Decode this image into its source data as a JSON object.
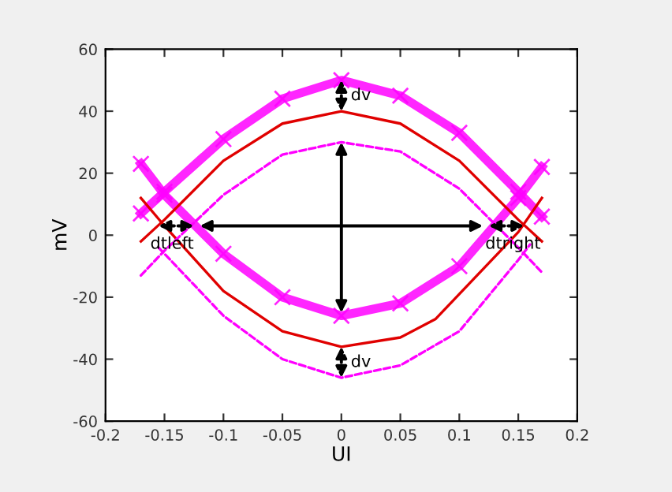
{
  "chart_data": {
    "type": "line",
    "xlabel": "UI",
    "ylabel": "mV",
    "xlim": [
      -0.2,
      0.2
    ],
    "ylim": [
      -60,
      60
    ],
    "xticks": [
      -0.2,
      -0.15,
      -0.1,
      -0.05,
      0,
      0.05,
      0.1,
      0.15,
      0.2
    ],
    "yticks": [
      -60,
      -40,
      -20,
      0,
      20,
      40,
      60
    ],
    "grid": false,
    "series": [
      {
        "color": "#ff00ff",
        "marker": "cross",
        "line_style": "solid",
        "x": [
          -0.17,
          -0.15,
          -0.1,
          -0.05,
          0,
          0.05,
          0.1,
          0.15,
          0.17
        ],
        "values": [
          7,
          14,
          31,
          44,
          50,
          45,
          33,
          14,
          6
        ]
      },
      {
        "color": "#ff00ff",
        "marker": "cross",
        "line_style": "solid",
        "x": [
          -0.17,
          -0.15,
          -0.1,
          -0.05,
          0,
          0.05,
          0.1,
          0.15,
          0.17
        ],
        "values": [
          23,
          13,
          -6,
          -20,
          -26,
          -22,
          -10,
          12,
          22
        ]
      },
      {
        "color": "#e00000",
        "marker": "none",
        "line_style": "solid",
        "x": [
          -0.17,
          -0.15,
          -0.1,
          -0.05,
          0,
          0.05,
          0.1,
          0.15,
          0.17
        ],
        "values": [
          -2,
          5,
          24,
          36,
          40,
          36,
          24,
          5,
          -2
        ]
      },
      {
        "color": "#e00000",
        "marker": "none",
        "line_style": "solid",
        "x": [
          -0.17,
          -0.15,
          -0.1,
          -0.05,
          0,
          0.05,
          0.08,
          0.15,
          0.17
        ],
        "values": [
          12,
          3,
          -18,
          -31,
          -36,
          -33,
          -27,
          1,
          12
        ]
      },
      {
        "color": "#ff00ff",
        "marker": "none",
        "line_style": "dashed",
        "x": [
          -0.17,
          -0.15,
          -0.1,
          -0.05,
          0,
          0.05,
          0.1,
          0.15,
          0.17
        ],
        "values": [
          -13,
          -5,
          13,
          26,
          30,
          27,
          15,
          -4,
          -12
        ]
      },
      {
        "color": "#ff00ff",
        "marker": "none",
        "line_style": "dashed",
        "x": [
          -0.155,
          -0.15,
          -0.1,
          -0.05,
          0,
          0.05,
          0.1,
          0.15,
          0.16
        ],
        "values": [
          -4,
          -6,
          -26,
          -40,
          -46,
          -42,
          -31,
          -8,
          -3
        ]
      }
    ],
    "annotations": [
      "dv",
      "dv",
      "dtleft",
      "dtright"
    ]
  }
}
